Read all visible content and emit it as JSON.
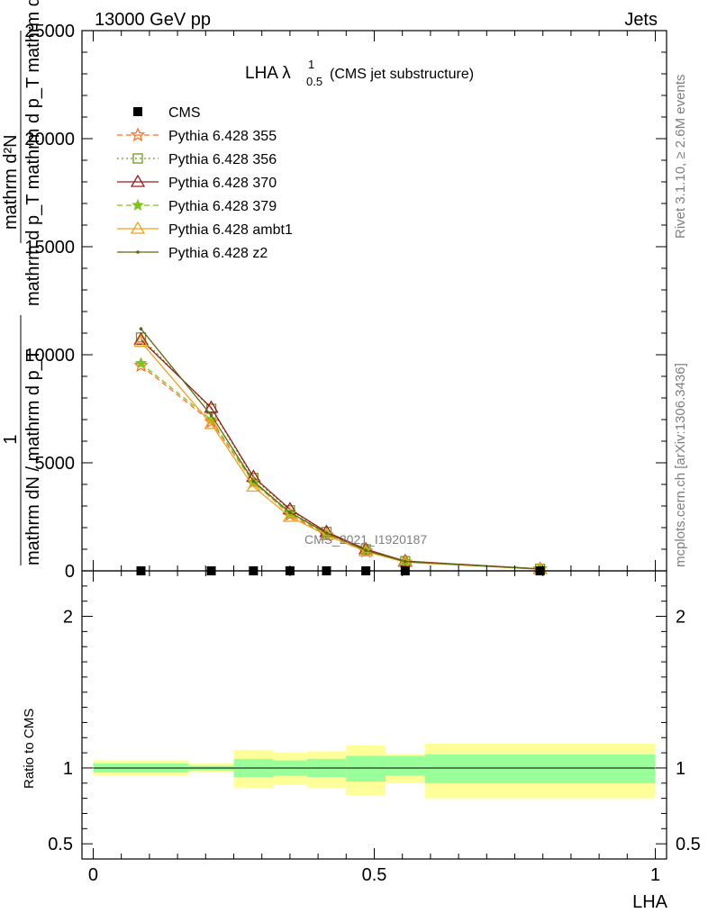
{
  "header": {
    "left": "13000 GeV pp",
    "right": "Jets"
  },
  "side_text": {
    "rivet": "Rivet 3.1.10, ≥ 2.6M events",
    "mcplots": "mcplots.cern.ch [arXiv:1306.3436]"
  },
  "plot_title": {
    "main": "LHA λ",
    "sup": "1",
    "sub": "0.5",
    "tail": "(CMS jet substructure)"
  },
  "watermark": "CMS_2021_I1920187",
  "ylabel_main": {
    "numerator": "mathrm d²N",
    "denominator": "mathrm d p_T mathrm d p_T mathrm d lambda",
    "prefix_num": "1",
    "prefix_den": "mathrm dN / mathrm d p_T"
  },
  "ylabel_ratio": "Ratio to CMS",
  "xlabel": "LHA",
  "colors": {
    "cms": "#000000",
    "p355": "#ff6f1f",
    "p356": "#6b9c1a",
    "p370": "#9b1b1f",
    "p379": "#7fc41b",
    "pambt1": "#f0a11c",
    "pz2": "#5a6a12",
    "band_inner": "#99ff99",
    "band_outer": "#ffff99"
  },
  "chart_data": [
    {
      "type": "line",
      "title": "LHA λ^1_0.5 (CMS jet substructure)",
      "xlim": [
        -0.02,
        1.02
      ],
      "ylim": [
        0,
        25000
      ],
      "yticks": [
        0,
        5000,
        10000,
        15000,
        20000,
        25000
      ],
      "ytick_labels": [
        "0",
        "5000",
        "10000",
        "15000",
        "20000",
        "25000"
      ],
      "legend_position": "top-left",
      "cms": {
        "name": "CMS",
        "x": [
          0.085,
          0.21,
          0.285,
          0.35,
          0.415,
          0.485,
          0.555,
          0.795
        ],
        "y": [
          0,
          0,
          0,
          0,
          0,
          0,
          0,
          0
        ]
      },
      "series": [
        {
          "name": "Pythia 6.428 355",
          "color_key": "p355",
          "dash": "dashed",
          "marker": "star-open",
          "x": [
            0.085,
            0.21,
            0.285,
            0.35,
            0.415,
            0.485,
            0.555,
            0.795
          ],
          "y": [
            9500,
            6900,
            4100,
            2600,
            1650,
            900,
            400,
            80
          ]
        },
        {
          "name": "Pythia 6.428 356",
          "color_key": "p356",
          "dash": "dotted",
          "marker": "square-open",
          "x": [
            0.085,
            0.21,
            0.285,
            0.35,
            0.415,
            0.485,
            0.555,
            0.795
          ],
          "y": [
            10800,
            7500,
            4300,
            2800,
            1800,
            1000,
            450,
            90
          ]
        },
        {
          "name": "Pythia 6.428 370",
          "color_key": "p370",
          "dash": "solid",
          "marker": "triangle-open",
          "x": [
            0.085,
            0.21,
            0.285,
            0.35,
            0.415,
            0.485,
            0.555,
            0.795
          ],
          "y": [
            10700,
            7550,
            4350,
            2850,
            1800,
            1000,
            450,
            90
          ]
        },
        {
          "name": "Pythia 6.428 379",
          "color_key": "p379",
          "dash": "dashed",
          "marker": "star-filled",
          "x": [
            0.085,
            0.21,
            0.285,
            0.35,
            0.415,
            0.485,
            0.555,
            0.795
          ],
          "y": [
            9600,
            7000,
            4100,
            2650,
            1700,
            950,
            420,
            85
          ]
        },
        {
          "name": "Pythia 6.428 ambt1",
          "color_key": "pambt1",
          "dash": "solid",
          "marker": "triangle-open",
          "x": [
            0.085,
            0.21,
            0.285,
            0.35,
            0.415,
            0.485,
            0.555,
            0.795
          ],
          "y": [
            10600,
            6800,
            3900,
            2500,
            1650,
            900,
            400,
            80
          ]
        },
        {
          "name": "Pythia 6.428 z2",
          "color_key": "pz2",
          "dash": "solid",
          "marker": "dot",
          "x": [
            0.085,
            0.21,
            0.285,
            0.35,
            0.415,
            0.485,
            0.555,
            0.795
          ],
          "y": [
            11200,
            7200,
            4150,
            2700,
            1750,
            950,
            430,
            85
          ]
        }
      ]
    },
    {
      "type": "area",
      "ylabel": "Ratio to CMS",
      "xlabel": "LHA",
      "xlim": [
        -0.02,
        1.02
      ],
      "ylim": [
        0.4,
        2.3
      ],
      "xticks": [
        0,
        0.5,
        1
      ],
      "xtick_labels": [
        "0",
        "0.5",
        "1"
      ],
      "yticks": [
        0.5,
        1,
        2
      ],
      "ytick_labels": [
        "0.5",
        "1",
        "2"
      ],
      "reference_line": 1,
      "bins": [
        {
          "lo": 0.0,
          "hi": 0.17,
          "inner": [
            0.97,
            1.03
          ],
          "outer": [
            0.95,
            1.05
          ]
        },
        {
          "lo": 0.17,
          "hi": 0.25,
          "inner": [
            0.985,
            1.015
          ],
          "outer": [
            0.97,
            1.03
          ]
        },
        {
          "lo": 0.25,
          "hi": 0.32,
          "inner": [
            0.94,
            1.06
          ],
          "outer": [
            0.87,
            1.12
          ]
        },
        {
          "lo": 0.32,
          "hi": 0.38,
          "inner": [
            0.95,
            1.05
          ],
          "outer": [
            0.89,
            1.1
          ]
        },
        {
          "lo": 0.38,
          "hi": 0.45,
          "inner": [
            0.94,
            1.06
          ],
          "outer": [
            0.87,
            1.11
          ]
        },
        {
          "lo": 0.45,
          "hi": 0.52,
          "inner": [
            0.91,
            1.08
          ],
          "outer": [
            0.82,
            1.15
          ]
        },
        {
          "lo": 0.52,
          "hi": 0.59,
          "inner": [
            0.95,
            1.08
          ],
          "outer": [
            0.9,
            1.09
          ]
        },
        {
          "lo": 0.59,
          "hi": 1.0,
          "inner": [
            0.9,
            1.09
          ],
          "outer": [
            0.8,
            1.16
          ]
        }
      ]
    }
  ]
}
